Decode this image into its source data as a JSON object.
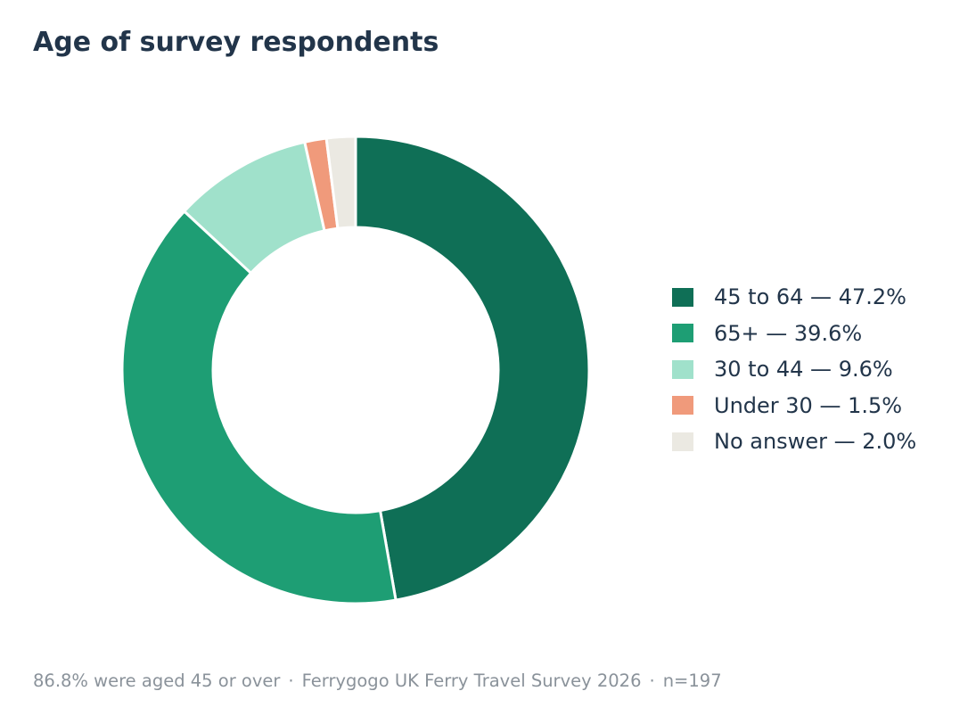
{
  "chart_data": {
    "type": "pie",
    "title": "Age of survey respondents",
    "series": [
      {
        "name": "45 to 64",
        "value": 47.2,
        "color": "#0f6f56"
      },
      {
        "name": "65+",
        "value": 39.6,
        "color": "#1e9e74"
      },
      {
        "name": "30 to 44",
        "value": 9.6,
        "color": "#a0e1cb"
      },
      {
        "name": "Under 30",
        "value": 1.5,
        "color": "#f09a7b"
      },
      {
        "name": "No answer",
        "value": 2.0,
        "color": "#ebe9e2"
      }
    ],
    "legend_labels": [
      "45 to 64 — 47.2%",
      "65+ — 39.6%",
      "30 to 44 — 9.6%",
      "Under 30 — 1.5%",
      "No answer — 2.0%"
    ],
    "legend_position": "right",
    "donut": true,
    "start": "top",
    "direction": "clockwise"
  },
  "footer": {
    "summary": "86.8% were aged 45 or over",
    "separator": "·",
    "source": "Ferrygogo UK Ferry Travel Survey 2026",
    "sample": "n=197"
  }
}
